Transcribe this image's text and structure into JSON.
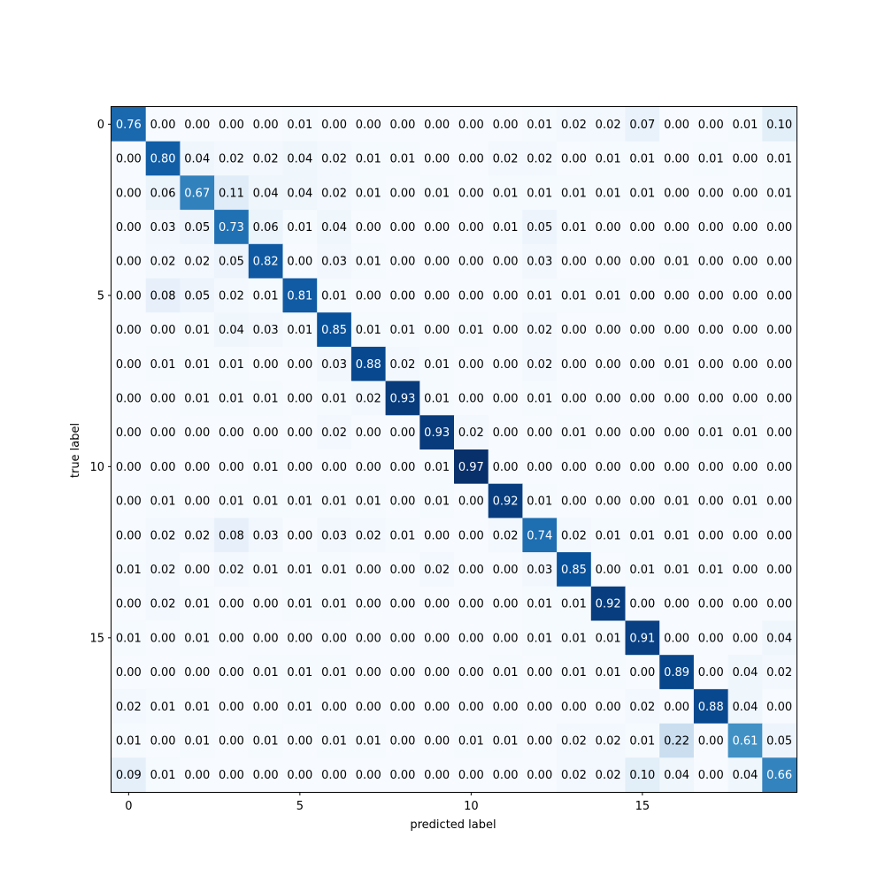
{
  "chart_data": {
    "type": "heatmap",
    "title": "",
    "xlabel": "predicted label",
    "ylabel": "true label",
    "colormap": "Blues",
    "value_range": [
      0,
      1
    ],
    "x_ticks": [
      "0",
      "5",
      "10",
      "15"
    ],
    "y_ticks": [
      "0",
      "5",
      "10",
      "15"
    ],
    "x_tick_positions": [
      0,
      5,
      10,
      15
    ],
    "y_tick_positions": [
      0,
      5,
      10,
      15
    ],
    "grid": false,
    "matrix": [
      [
        0.76,
        0.0,
        0.0,
        0.0,
        0.0,
        0.01,
        0.0,
        0.0,
        0.0,
        0.0,
        0.0,
        0.0,
        0.01,
        0.02,
        0.02,
        0.07,
        0.0,
        0.0,
        0.01,
        0.1
      ],
      [
        0.0,
        0.8,
        0.04,
        0.02,
        0.02,
        0.04,
        0.02,
        0.01,
        0.01,
        0.0,
        0.0,
        0.02,
        0.02,
        0.0,
        0.01,
        0.01,
        0.0,
        0.01,
        0.0,
        0.01
      ],
      [
        0.0,
        0.06,
        0.67,
        0.11,
        0.04,
        0.04,
        0.02,
        0.01,
        0.0,
        0.01,
        0.0,
        0.01,
        0.01,
        0.01,
        0.01,
        0.01,
        0.0,
        0.0,
        0.0,
        0.01
      ],
      [
        0.0,
        0.03,
        0.05,
        0.73,
        0.06,
        0.01,
        0.04,
        0.0,
        0.0,
        0.0,
        0.0,
        0.01,
        0.05,
        0.01,
        0.0,
        0.0,
        0.0,
        0.0,
        0.0,
        0.0
      ],
      [
        0.0,
        0.02,
        0.02,
        0.05,
        0.82,
        0.0,
        0.03,
        0.01,
        0.0,
        0.0,
        0.0,
        0.0,
        0.03,
        0.0,
        0.0,
        0.0,
        0.01,
        0.0,
        0.0,
        0.0
      ],
      [
        0.0,
        0.08,
        0.05,
        0.02,
        0.01,
        0.81,
        0.01,
        0.0,
        0.0,
        0.0,
        0.0,
        0.0,
        0.01,
        0.01,
        0.01,
        0.0,
        0.0,
        0.0,
        0.0,
        0.0
      ],
      [
        0.0,
        0.0,
        0.01,
        0.04,
        0.03,
        0.01,
        0.85,
        0.01,
        0.01,
        0.0,
        0.01,
        0.0,
        0.02,
        0.0,
        0.0,
        0.0,
        0.0,
        0.0,
        0.0,
        0.0
      ],
      [
        0.0,
        0.01,
        0.01,
        0.01,
        0.0,
        0.0,
        0.03,
        0.88,
        0.02,
        0.01,
        0.0,
        0.0,
        0.02,
        0.0,
        0.0,
        0.0,
        0.01,
        0.0,
        0.0,
        0.0
      ],
      [
        0.0,
        0.0,
        0.01,
        0.01,
        0.01,
        0.0,
        0.01,
        0.02,
        0.93,
        0.01,
        0.0,
        0.0,
        0.01,
        0.0,
        0.0,
        0.0,
        0.0,
        0.0,
        0.0,
        0.0
      ],
      [
        0.0,
        0.0,
        0.0,
        0.0,
        0.0,
        0.0,
        0.02,
        0.0,
        0.0,
        0.93,
        0.02,
        0.0,
        0.0,
        0.01,
        0.0,
        0.0,
        0.0,
        0.01,
        0.01,
        0.0
      ],
      [
        0.0,
        0.0,
        0.0,
        0.0,
        0.01,
        0.0,
        0.0,
        0.0,
        0.0,
        0.01,
        0.97,
        0.0,
        0.0,
        0.0,
        0.0,
        0.0,
        0.0,
        0.0,
        0.0,
        0.0
      ],
      [
        0.0,
        0.01,
        0.0,
        0.01,
        0.01,
        0.01,
        0.01,
        0.01,
        0.0,
        0.01,
        0.0,
        0.92,
        0.01,
        0.0,
        0.0,
        0.0,
        0.01,
        0.0,
        0.01,
        0.0
      ],
      [
        0.0,
        0.02,
        0.02,
        0.08,
        0.03,
        0.0,
        0.03,
        0.02,
        0.01,
        0.0,
        0.0,
        0.02,
        0.74,
        0.02,
        0.01,
        0.01,
        0.01,
        0.0,
        0.0,
        0.0
      ],
      [
        0.01,
        0.02,
        0.0,
        0.02,
        0.01,
        0.01,
        0.01,
        0.0,
        0.0,
        0.02,
        0.0,
        0.0,
        0.03,
        0.85,
        0.0,
        0.01,
        0.01,
        0.01,
        0.0,
        0.0
      ],
      [
        0.0,
        0.02,
        0.01,
        0.0,
        0.0,
        0.01,
        0.01,
        0.0,
        0.0,
        0.0,
        0.0,
        0.0,
        0.01,
        0.01,
        0.92,
        0.0,
        0.0,
        0.0,
        0.0,
        0.0
      ],
      [
        0.01,
        0.0,
        0.01,
        0.0,
        0.0,
        0.0,
        0.0,
        0.0,
        0.0,
        0.0,
        0.0,
        0.0,
        0.01,
        0.01,
        0.01,
        0.91,
        0.0,
        0.0,
        0.0,
        0.04
      ],
      [
        0.0,
        0.0,
        0.0,
        0.0,
        0.01,
        0.01,
        0.01,
        0.0,
        0.0,
        0.0,
        0.0,
        0.01,
        0.0,
        0.01,
        0.01,
        0.0,
        0.89,
        0.0,
        0.04,
        0.02
      ],
      [
        0.02,
        0.01,
        0.01,
        0.0,
        0.0,
        0.01,
        0.0,
        0.0,
        0.0,
        0.0,
        0.0,
        0.0,
        0.0,
        0.0,
        0.0,
        0.02,
        0.0,
        0.88,
        0.04,
        0.0
      ],
      [
        0.01,
        0.0,
        0.01,
        0.0,
        0.01,
        0.0,
        0.01,
        0.01,
        0.0,
        0.0,
        0.01,
        0.01,
        0.0,
        0.02,
        0.02,
        0.01,
        0.22,
        0.0,
        0.61,
        0.05
      ],
      [
        0.09,
        0.01,
        0.0,
        0.0,
        0.0,
        0.0,
        0.0,
        0.0,
        0.0,
        0.0,
        0.0,
        0.0,
        0.0,
        0.02,
        0.02,
        0.1,
        0.04,
        0.0,
        0.04,
        0.66
      ]
    ]
  }
}
